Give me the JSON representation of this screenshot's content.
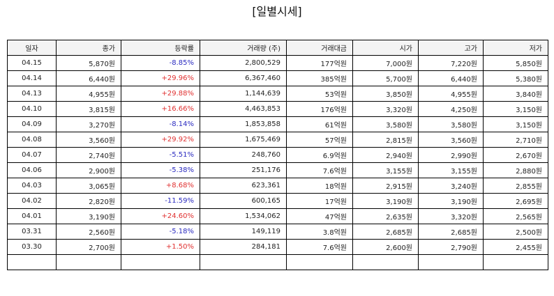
{
  "title": "[일별시세]",
  "columns": [
    "일자",
    "종가",
    "등락률",
    "거래량 (주)",
    "거래대금",
    "시가",
    "고가",
    "저가"
  ],
  "colors": {
    "up": "#e03030",
    "down": "#2a2ac0"
  },
  "rows": [
    {
      "date": "04.15",
      "close": "5,870원",
      "change": "-8.85%",
      "dir": "down",
      "volume": "2,800,529",
      "amount": "177억원",
      "open": "7,000원",
      "high": "7,220원",
      "low": "5,850원"
    },
    {
      "date": "04.14",
      "close": "6,440원",
      "change": "+29.96%",
      "dir": "up",
      "volume": "6,367,460",
      "amount": "385억원",
      "open": "5,700원",
      "high": "6,440원",
      "low": "5,380원"
    },
    {
      "date": "04.13",
      "close": "4,955원",
      "change": "+29.88%",
      "dir": "up",
      "volume": "1,144,639",
      "amount": "53억원",
      "open": "3,850원",
      "high": "4,955원",
      "low": "3,840원"
    },
    {
      "date": "04.10",
      "close": "3,815원",
      "change": "+16.66%",
      "dir": "up",
      "volume": "4,463,853",
      "amount": "176억원",
      "open": "3,320원",
      "high": "4,250원",
      "low": "3,150원"
    },
    {
      "date": "04.09",
      "close": "3,270원",
      "change": "-8.14%",
      "dir": "down",
      "volume": "1,853,858",
      "amount": "61억원",
      "open": "3,580원",
      "high": "3,580원",
      "low": "3,150원"
    },
    {
      "date": "04.08",
      "close": "3,560원",
      "change": "+29.92%",
      "dir": "up",
      "volume": "1,675,469",
      "amount": "57억원",
      "open": "2,815원",
      "high": "3,560원",
      "low": "2,710원"
    },
    {
      "date": "04.07",
      "close": "2,740원",
      "change": "-5.51%",
      "dir": "down",
      "volume": "248,760",
      "amount": "6.9억원",
      "open": "2,940원",
      "high": "2,990원",
      "low": "2,670원"
    },
    {
      "date": "04.06",
      "close": "2,900원",
      "change": "-5.38%",
      "dir": "down",
      "volume": "251,176",
      "amount": "7.6억원",
      "open": "3,155원",
      "high": "3,155원",
      "low": "2,880원"
    },
    {
      "date": "04.03",
      "close": "3,065원",
      "change": "+8.68%",
      "dir": "up",
      "volume": "623,361",
      "amount": "18억원",
      "open": "2,915원",
      "high": "3,240원",
      "low": "2,855원"
    },
    {
      "date": "04.02",
      "close": "2,820원",
      "change": "-11.59%",
      "dir": "down",
      "volume": "600,165",
      "amount": "17억원",
      "open": "3,190원",
      "high": "3,190원",
      "low": "2,695원"
    },
    {
      "date": "04.01",
      "close": "3,190원",
      "change": "+24.60%",
      "dir": "up",
      "volume": "1,534,062",
      "amount": "47억원",
      "open": "2,635원",
      "high": "3,320원",
      "low": "2,565원"
    },
    {
      "date": "03.31",
      "close": "2,560원",
      "change": "-5.18%",
      "dir": "down",
      "volume": "149,119",
      "amount": "3.8억원",
      "open": "2,685원",
      "high": "2,685원",
      "low": "2,500원"
    },
    {
      "date": "03.30",
      "close": "2,700원",
      "change": "+1.50%",
      "dir": "up",
      "volume": "284,181",
      "amount": "7.6억원",
      "open": "2,600원",
      "high": "2,790원",
      "low": "2,455원"
    },
    {
      "date": "",
      "close": "",
      "change": "",
      "dir": "",
      "volume": "",
      "amount": "",
      "open": "",
      "high": "",
      "low": ""
    }
  ]
}
